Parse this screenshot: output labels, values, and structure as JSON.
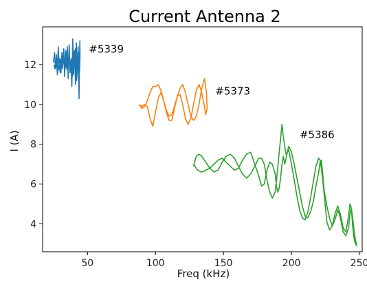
{
  "chart_data": {
    "type": "line",
    "title": "Current Antenna 2",
    "xlabel": "Freq (kHz)",
    "ylabel": "I (A)",
    "xlim": [
      17,
      252
    ],
    "ylim": [
      2.6,
      13.9
    ],
    "xticks": [
      50,
      100,
      150,
      200,
      250
    ],
    "yticks": [
      4,
      6,
      8,
      10,
      12
    ],
    "grid": false,
    "series": [
      {
        "name": "#5339",
        "color": "#1f77b4",
        "x": [
          25,
          25.8,
          26.5,
          27.2,
          27.8,
          28.5,
          29.2,
          29.8,
          30.5,
          31.2,
          31.8,
          32.5,
          33.2,
          33.8,
          34.5,
          35.2,
          35.8,
          36.5,
          37.2,
          37.8,
          38.5,
          39.2,
          39.8,
          40.5,
          41.2,
          41.8,
          42.5,
          43.2,
          43.8,
          44.4,
          44.5,
          44.2,
          43.5,
          42.8,
          42,
          41.2,
          40.5,
          39.7,
          38.9,
          38,
          37.2,
          36.4,
          35.6,
          34.8,
          34,
          33.2,
          32.4,
          31.6,
          30.8,
          30,
          29.2,
          28.4,
          27.6,
          26.8,
          26,
          25.3
        ],
        "y": [
          12.1,
          12.6,
          11.8,
          12.5,
          11.5,
          12.9,
          11.9,
          12.3,
          11.6,
          12.6,
          12.0,
          12.8,
          11.4,
          12.4,
          11.8,
          12.9,
          11.3,
          13.0,
          11.6,
          12.2,
          10.9,
          13.3,
          11.5,
          12.7,
          11.0,
          13.1,
          11.6,
          12.9,
          10.3,
          13.2,
          12.4,
          11.7,
          12.6,
          12.0,
          11.2,
          12.8,
          11.9,
          12.6,
          11.4,
          12.3,
          11.8,
          12.5,
          11.7,
          12.2,
          12.7,
          11.9,
          12.4,
          11.8,
          12.3,
          11.6,
          12.0,
          11.7,
          12.3,
          11.9,
          11.8,
          12.0
        ]
      },
      {
        "name": "#5373",
        "color": "#ff7f0e",
        "x": [
          88,
          90,
          92,
          94,
          96,
          98,
          100,
          102,
          104,
          106,
          108,
          110,
          112,
          114,
          116,
          118,
          120,
          122,
          124,
          126,
          128,
          130,
          132,
          134,
          136,
          137.5,
          138,
          137,
          136,
          134,
          132,
          130,
          128,
          126,
          124,
          122,
          120,
          118,
          116,
          114,
          112,
          110,
          108,
          106,
          104,
          102,
          100,
          98,
          96,
          94,
          92,
          90,
          88
        ],
        "y": [
          10.0,
          9.8,
          9.9,
          10.2,
          10.6,
          10.9,
          10.9,
          11.0,
          10.7,
          10.2,
          9.7,
          9.4,
          9.5,
          9.9,
          10.4,
          10.8,
          11.0,
          10.6,
          10.0,
          9.4,
          9.2,
          9.4,
          10.0,
          10.8,
          11.3,
          10.6,
          9.8,
          9.5,
          9.9,
          10.6,
          11.0,
          10.7,
          10.0,
          9.3,
          9.0,
          9.3,
          10.0,
          10.5,
          10.4,
          9.8,
          9.2,
          9.2,
          9.6,
          10.2,
          10.6,
          10.3,
          9.6,
          8.9,
          9.3,
          9.9,
          10.0,
          9.9,
          10.0
        ]
      },
      {
        "name": "#5386",
        "color": "#2ca02c",
        "x": [
          128,
          130,
          132,
          134,
          137,
          140,
          143,
          146,
          149,
          152,
          155,
          158,
          161,
          164,
          167,
          170,
          173,
          176,
          178,
          180,
          182,
          184,
          186,
          188,
          189,
          190,
          191,
          192,
          193,
          194,
          195,
          196,
          197,
          198,
          200,
          202,
          204,
          206,
          208,
          210,
          212,
          214,
          216,
          218,
          220,
          221,
          222,
          223,
          224,
          225,
          226,
          228,
          230,
          232,
          234,
          236,
          238,
          240,
          242,
          243,
          244,
          245,
          246,
          247,
          248,
          247,
          246,
          245,
          244,
          243,
          242,
          240,
          238,
          236,
          234,
          232,
          230,
          228,
          226,
          224,
          223,
          222,
          221,
          220,
          218,
          216,
          214,
          212,
          210,
          208,
          206,
          204,
          202,
          200,
          198,
          196,
          195,
          194,
          193,
          192,
          191,
          190,
          189,
          188,
          186,
          184,
          182,
          180,
          178,
          176,
          173,
          170,
          167,
          164,
          161,
          158,
          155,
          152,
          149,
          146,
          143,
          140,
          137,
          134,
          131,
          128
        ],
        "y": [
          6.9,
          7.4,
          7.5,
          7.4,
          7.1,
          6.8,
          6.6,
          6.7,
          7.1,
          7.4,
          7.5,
          7.3,
          6.9,
          6.5,
          6.3,
          6.5,
          6.9,
          7.3,
          7.3,
          7.0,
          6.2,
          5.6,
          5.3,
          5.6,
          6.2,
          6.9,
          7.6,
          8.3,
          9.0,
          8.4,
          7.9,
          7.5,
          7.6,
          7.7,
          7.0,
          6.2,
          5.4,
          4.7,
          4.3,
          4.2,
          4.6,
          5.3,
          6.1,
          6.9,
          7.3,
          7.2,
          6.8,
          6.2,
          5.5,
          4.8,
          4.1,
          3.7,
          3.9,
          4.5,
          4.9,
          4.5,
          3.8,
          3.6,
          4.4,
          5.0,
          4.8,
          3.9,
          3.3,
          3.0,
          2.9,
          3.2,
          3.7,
          4.3,
          4.8,
          4.5,
          3.8,
          3.4,
          3.6,
          4.3,
          4.7,
          4.2,
          3.9,
          4.3,
          4.9,
          5.7,
          6.5,
          7.2,
          7.1,
          6.6,
          5.9,
          5.1,
          4.6,
          4.3,
          4.4,
          4.9,
          5.6,
          6.3,
          7.0,
          7.6,
          7.9,
          7.3,
          7.0,
          7.4,
          7.0,
          6.3,
          5.8,
          5.6,
          5.9,
          6.5,
          7.0,
          7.1,
          6.7,
          6.0,
          5.9,
          6.4,
          7.0,
          7.6,
          7.5,
          7.2,
          6.8,
          6.7,
          6.9,
          7.1,
          7.3,
          7.2,
          7.0,
          6.8,
          6.7,
          6.6,
          6.7,
          7.0
        ]
      }
    ],
    "annotations": [
      {
        "text": "#5339",
        "x": 51,
        "y": 12.6
      },
      {
        "text": "#5373",
        "x": 144,
        "y": 10.5
      },
      {
        "text": "#5386",
        "x": 206,
        "y": 8.3
      }
    ]
  }
}
